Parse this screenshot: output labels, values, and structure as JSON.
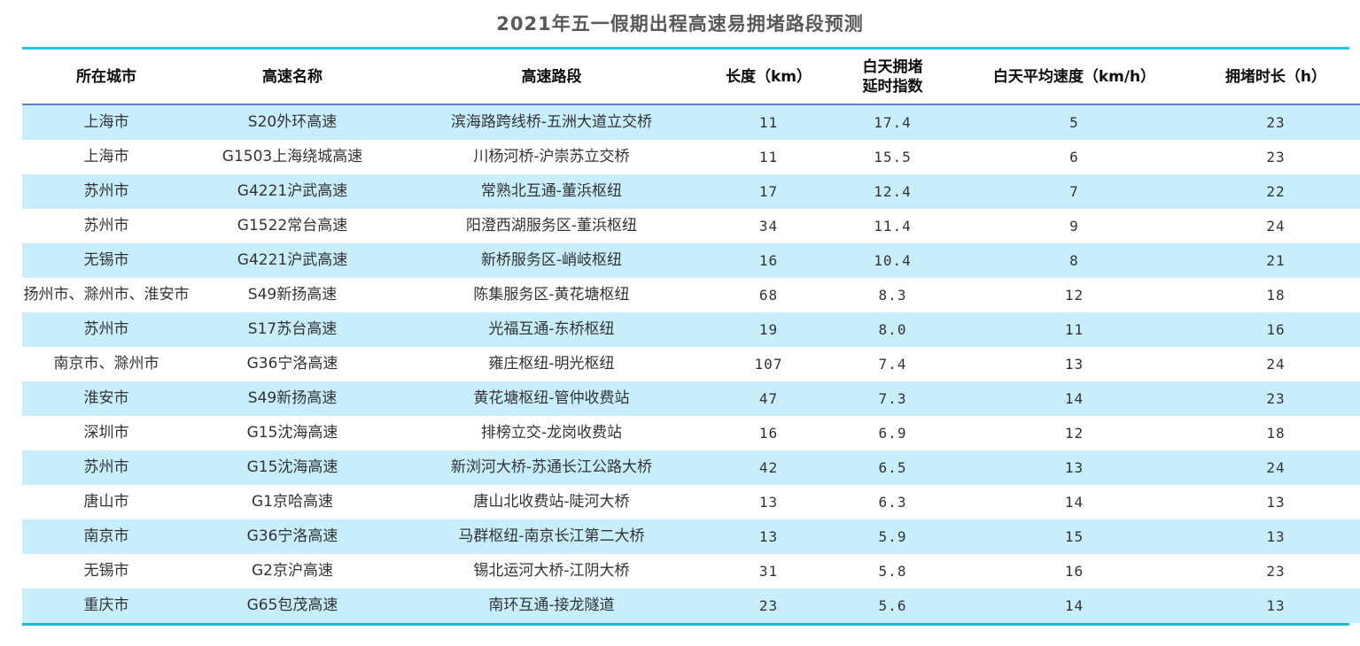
{
  "chart_data": {
    "type": "table",
    "title": "2021年五一假期出程高速易拥堵路段预测",
    "columns": [
      {
        "label": "所在城市"
      },
      {
        "label": "高速名称"
      },
      {
        "label": "高速路段"
      },
      {
        "label": "长度（km）"
      },
      {
        "label": "白天拥堵\n延时指数"
      },
      {
        "label": "白天平均速度（km/h）"
      },
      {
        "label": "拥堵时长（h）"
      }
    ],
    "fields": [
      "city",
      "highway",
      "section",
      "length",
      "index",
      "speed",
      "duration"
    ],
    "numeric_fields": [
      "length",
      "index",
      "speed",
      "duration"
    ],
    "rows": [
      {
        "city": "上海市",
        "highway": "S20外环高速",
        "section": "滨海路跨线桥-五洲大道立交桥",
        "length": "11",
        "index": "17.4",
        "speed": "5",
        "duration": "23"
      },
      {
        "city": "上海市",
        "highway": "G1503上海绕城高速",
        "section": "川杨河桥-沪崇苏立交桥",
        "length": "11",
        "index": "15.5",
        "speed": "6",
        "duration": "23"
      },
      {
        "city": "苏州市",
        "highway": "G4221沪武高速",
        "section": "常熟北互通-董浜枢纽",
        "length": "17",
        "index": "12.4",
        "speed": "7",
        "duration": "22"
      },
      {
        "city": "苏州市",
        "highway": "G1522常台高速",
        "section": "阳澄西湖服务区-董浜枢纽",
        "length": "34",
        "index": "11.4",
        "speed": "9",
        "duration": "24"
      },
      {
        "city": "无锡市",
        "highway": "G4221沪武高速",
        "section": "新桥服务区-峭岐枢纽",
        "length": "16",
        "index": "10.4",
        "speed": "8",
        "duration": "21"
      },
      {
        "city": "扬州市、滁州市、淮安市",
        "highway": "S49新扬高速",
        "section": "陈集服务区-黄花塘枢纽",
        "length": "68",
        "index": "8.3",
        "speed": "12",
        "duration": "18"
      },
      {
        "city": "苏州市",
        "highway": "S17苏台高速",
        "section": "光福互通-东桥枢纽",
        "length": "19",
        "index": "8.0",
        "speed": "11",
        "duration": "16"
      },
      {
        "city": "南京市、滁州市",
        "highway": "G36宁洛高速",
        "section": "雍庄枢纽-明光枢纽",
        "length": "107",
        "index": "7.4",
        "speed": "13",
        "duration": "24"
      },
      {
        "city": "淮安市",
        "highway": "S49新扬高速",
        "section": "黄花塘枢纽-管仲收费站",
        "length": "47",
        "index": "7.3",
        "speed": "14",
        "duration": "23"
      },
      {
        "city": "深圳市",
        "highway": "G15沈海高速",
        "section": "排榜立交-龙岗收费站",
        "length": "16",
        "index": "6.9",
        "speed": "12",
        "duration": "18"
      },
      {
        "city": "苏州市",
        "highway": "G15沈海高速",
        "section": "新浏河大桥-苏通长江公路大桥",
        "length": "42",
        "index": "6.5",
        "speed": "13",
        "duration": "24"
      },
      {
        "city": "唐山市",
        "highway": "G1京哈高速",
        "section": "唐山北收费站-陡河大桥",
        "length": "13",
        "index": "6.3",
        "speed": "14",
        "duration": "13"
      },
      {
        "city": "南京市",
        "highway": "G36宁洛高速",
        "section": "马群枢纽-南京长江第二大桥",
        "length": "13",
        "index": "5.9",
        "speed": "15",
        "duration": "13"
      },
      {
        "city": "无锡市",
        "highway": "G2京沪高速",
        "section": "锡北运河大桥-江阴大桥",
        "length": "31",
        "index": "5.8",
        "speed": "16",
        "duration": "23"
      },
      {
        "city": "重庆市",
        "highway": "G65包茂高速",
        "section": "南环互通-接龙隧道",
        "length": "23",
        "index": "5.6",
        "speed": "14",
        "duration": "13"
      }
    ],
    "layout_hints": {
      "stripe_row_color": "#c8eefb",
      "top_divider_color": "#2cc3e0",
      "header_divider_color": "#5b82c2",
      "bottom_divider_color": "#1db9d7",
      "title_color": "#595959"
    }
  }
}
